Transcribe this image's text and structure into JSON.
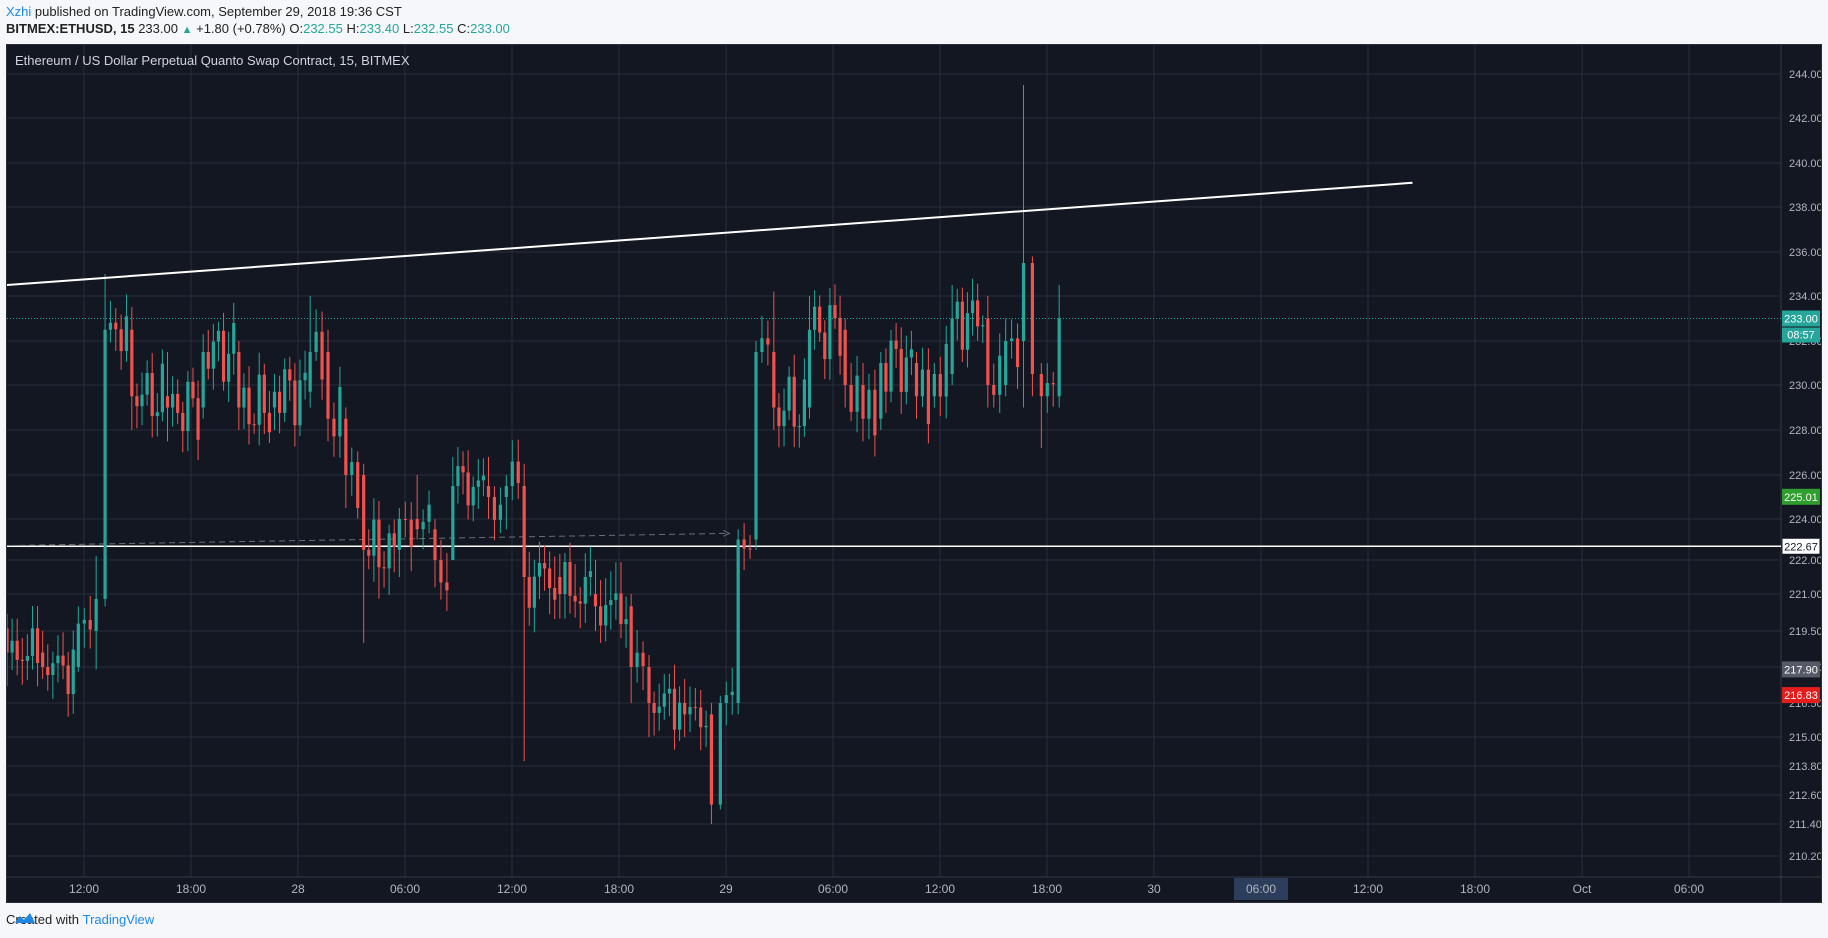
{
  "header": {
    "author": "Xzhi",
    "published_text": " published on TradingView.com, September 29, 2018 19:36 CST"
  },
  "ticker": {
    "symbol": "BITMEX:ETHUSD, 15",
    "last": "233.00",
    "change": "+1.80 (+0.78%)",
    "o_label": "O:",
    "o": "232.55",
    "h_label": "H:",
    "h": "233.40",
    "l_label": "L:",
    "l": "232.55",
    "c_label": "C:",
    "c": "233.00"
  },
  "footer": {
    "created_with": "Created with",
    "brand": "TradingView"
  },
  "colors": {
    "background": "#131722",
    "grid": "#2a2e39",
    "up": "#26a69a",
    "down": "#ef5350",
    "trendline": "#ffffff",
    "last_price_tag": "#26a69a",
    "tag_225": "#2e9e2e",
    "tag_217": "#555a66",
    "tag_216": "#e31c1c"
  },
  "chart_data": {
    "type": "candlestick",
    "title": "Ethereum / US Dollar Perpetual Quanto Swap Contract, 15, BITMEX",
    "y_ticks": [
      "244.00",
      "242.00",
      "240.00",
      "238.00",
      "236.00",
      "234.00",
      "232.00",
      "230.00",
      "228.00",
      "226.00",
      "224.00",
      "222.00",
      "221.00",
      "219.50",
      "218.00",
      "216.50",
      "215.00",
      "213.80",
      "212.60",
      "211.40",
      "210.20"
    ],
    "x_ticks": [
      "12:00",
      "18:00",
      "28",
      "06:00",
      "12:00",
      "18:00",
      "29",
      "06:00",
      "12:00",
      "18:00",
      "30",
      "06:00",
      "12:00",
      "18:00",
      "Oct",
      "06:00"
    ],
    "x_highlight": "06:00",
    "price_tags": [
      {
        "label": "233.00",
        "value": 233.0,
        "color": "#26a69a",
        "sub": "08:57"
      },
      {
        "label": "225.01",
        "value": 225.01,
        "color": "#2e9e2e"
      },
      {
        "label": "222.67",
        "value": 222.67,
        "color": "#ffffff"
      },
      {
        "label": "217.90",
        "value": 217.9,
        "color": "#555a66"
      },
      {
        "label": "216.83",
        "value": 216.83,
        "color": "#e31c1c"
      }
    ],
    "horizontal_line": 222.67,
    "current_price_line": 233.0,
    "trendline": {
      "start_x": "Sep 27 07:00",
      "start_y": 234.5,
      "end_x": "Sep 30 05:00",
      "end_y": 239.1
    },
    "dashed_projection": {
      "start_x": "Sep 27 07:00",
      "start_y": 222.6,
      "end_x": "Sep 29 00:30",
      "end_y": 223.3
    },
    "candles_approx": [
      {
        "t": "Sep 27 08:00",
        "o": 219.6,
        "h": 220.2,
        "l": 217.2,
        "c": 218.6
      },
      {
        "t": "Sep 27 10:00",
        "o": 218.6,
        "h": 219.5,
        "l": 217.5,
        "c": 218.0
      },
      {
        "t": "Sep 27 12:00",
        "o": 218.0,
        "h": 220.5,
        "l": 217.8,
        "c": 219.8
      },
      {
        "t": "Sep 27 13:00",
        "o": 219.5,
        "h": 222.2,
        "l": 217.9,
        "c": 220.8
      },
      {
        "t": "Sep 27 13:30",
        "o": 220.8,
        "h": 235.0,
        "l": 220.5,
        "c": 232.5
      },
      {
        "t": "Sep 27 15:00",
        "o": 232.5,
        "h": 233.5,
        "l": 228.0,
        "c": 229.5
      },
      {
        "t": "Sep 27 17:00",
        "o": 229.5,
        "h": 231.5,
        "l": 227.5,
        "c": 229.0
      },
      {
        "t": "Sep 27 19:00",
        "o": 229.0,
        "h": 232.3,
        "l": 228.5,
        "c": 231.5
      },
      {
        "t": "Sep 27 21:00",
        "o": 231.5,
        "h": 232.0,
        "l": 228.0,
        "c": 229.0
      },
      {
        "t": "Sep 27 23:00",
        "o": 229.0,
        "h": 230.5,
        "l": 228.0,
        "c": 229.7
      },
      {
        "t": "Sep 28 01:00",
        "o": 229.7,
        "h": 234.0,
        "l": 229.0,
        "c": 231.5
      },
      {
        "t": "Sep 28 02:00",
        "o": 231.5,
        "h": 232.5,
        "l": 227.5,
        "c": 228.5
      },
      {
        "t": "Sep 28 03:00",
        "o": 228.5,
        "h": 229.0,
        "l": 224.5,
        "c": 226.0
      },
      {
        "t": "Sep 28 04:00",
        "o": 226.0,
        "h": 226.5,
        "l": 219.0,
        "c": 222.5
      },
      {
        "t": "Sep 28 06:00",
        "o": 222.5,
        "h": 224.5,
        "l": 221.5,
        "c": 224.0
      },
      {
        "t": "Sep 28 07:00",
        "o": 224.0,
        "h": 226.0,
        "l": 223.0,
        "c": 223.5
      },
      {
        "t": "Sep 28 08:00",
        "o": 223.5,
        "h": 224.0,
        "l": 221.2,
        "c": 222.0
      },
      {
        "t": "Sep 28 09:00",
        "o": 222.0,
        "h": 226.8,
        "l": 222.0,
        "c": 225.5
      },
      {
        "t": "Sep 28 11:00",
        "o": 225.5,
        "h": 226.8,
        "l": 224.0,
        "c": 225.0
      },
      {
        "t": "Sep 28 12:00",
        "o": 225.0,
        "h": 226.0,
        "l": 223.5,
        "c": 225.5
      },
      {
        "t": "Sep 28 13:00",
        "o": 225.5,
        "h": 226.5,
        "l": 214.0,
        "c": 221.5
      },
      {
        "t": "Sep 28 15:00",
        "o": 221.5,
        "h": 222.3,
        "l": 220.0,
        "c": 221.0
      },
      {
        "t": "Sep 28 17:00",
        "o": 221.0,
        "h": 222.0,
        "l": 219.5,
        "c": 220.5
      },
      {
        "t": "Sep 28 19:00",
        "o": 220.5,
        "h": 221.0,
        "l": 216.5,
        "c": 218.0
      },
      {
        "t": "Sep 28 20:00",
        "o": 218.0,
        "h": 218.5,
        "l": 215.0,
        "c": 216.5
      },
      {
        "t": "Sep 28 22:00",
        "o": 216.5,
        "h": 217.5,
        "l": 215.0,
        "c": 216.0
      },
      {
        "t": "Sep 28 23:30",
        "o": 216.0,
        "h": 216.5,
        "l": 211.4,
        "c": 212.2
      },
      {
        "t": "Sep 29 00:00",
        "o": 212.2,
        "h": 216.8,
        "l": 212.0,
        "c": 216.5
      },
      {
        "t": "Sep 29 01:00",
        "o": 216.5,
        "h": 223.5,
        "l": 216.0,
        "c": 223.0
      },
      {
        "t": "Sep 29 02:00",
        "o": 223.0,
        "h": 232.0,
        "l": 222.5,
        "c": 231.5
      },
      {
        "t": "Sep 29 03:00",
        "o": 231.5,
        "h": 234.2,
        "l": 228.0,
        "c": 229.0
      },
      {
        "t": "Sep 29 05:00",
        "o": 229.0,
        "h": 234.0,
        "l": 228.5,
        "c": 232.5
      },
      {
        "t": "Sep 29 07:00",
        "o": 232.5,
        "h": 233.0,
        "l": 229.0,
        "c": 230.0
      },
      {
        "t": "Sep 29 08:00",
        "o": 230.0,
        "h": 231.0,
        "l": 227.5,
        "c": 228.5
      },
      {
        "t": "Sep 29 09:00",
        "o": 228.5,
        "h": 231.5,
        "l": 228.0,
        "c": 231.0
      },
      {
        "t": "Sep 29 11:00",
        "o": 231.0,
        "h": 231.5,
        "l": 228.5,
        "c": 229.5
      },
      {
        "t": "Sep 29 12:00",
        "o": 229.5,
        "h": 231.0,
        "l": 229.0,
        "c": 230.5
      },
      {
        "t": "Sep 29 13:00",
        "o": 230.5,
        "h": 234.5,
        "l": 230.0,
        "c": 233.0
      },
      {
        "t": "Sep 29 15:00",
        "o": 233.0,
        "h": 234.0,
        "l": 229.0,
        "c": 230.0
      },
      {
        "t": "Sep 29 16:00",
        "o": 230.0,
        "h": 233.0,
        "l": 229.5,
        "c": 232.0
      },
      {
        "t": "Sep 29 17:00",
        "o": 232.0,
        "h": 243.5,
        "l": 229.0,
        "c": 235.5
      },
      {
        "t": "Sep 29 17:30",
        "o": 235.5,
        "h": 235.8,
        "l": 229.5,
        "c": 230.5
      },
      {
        "t": "Sep 29 18:00",
        "o": 230.5,
        "h": 231.0,
        "l": 227.2,
        "c": 229.5
      },
      {
        "t": "Sep 29 19:00",
        "o": 229.5,
        "h": 234.5,
        "l": 229.0,
        "c": 233.0
      }
    ]
  }
}
